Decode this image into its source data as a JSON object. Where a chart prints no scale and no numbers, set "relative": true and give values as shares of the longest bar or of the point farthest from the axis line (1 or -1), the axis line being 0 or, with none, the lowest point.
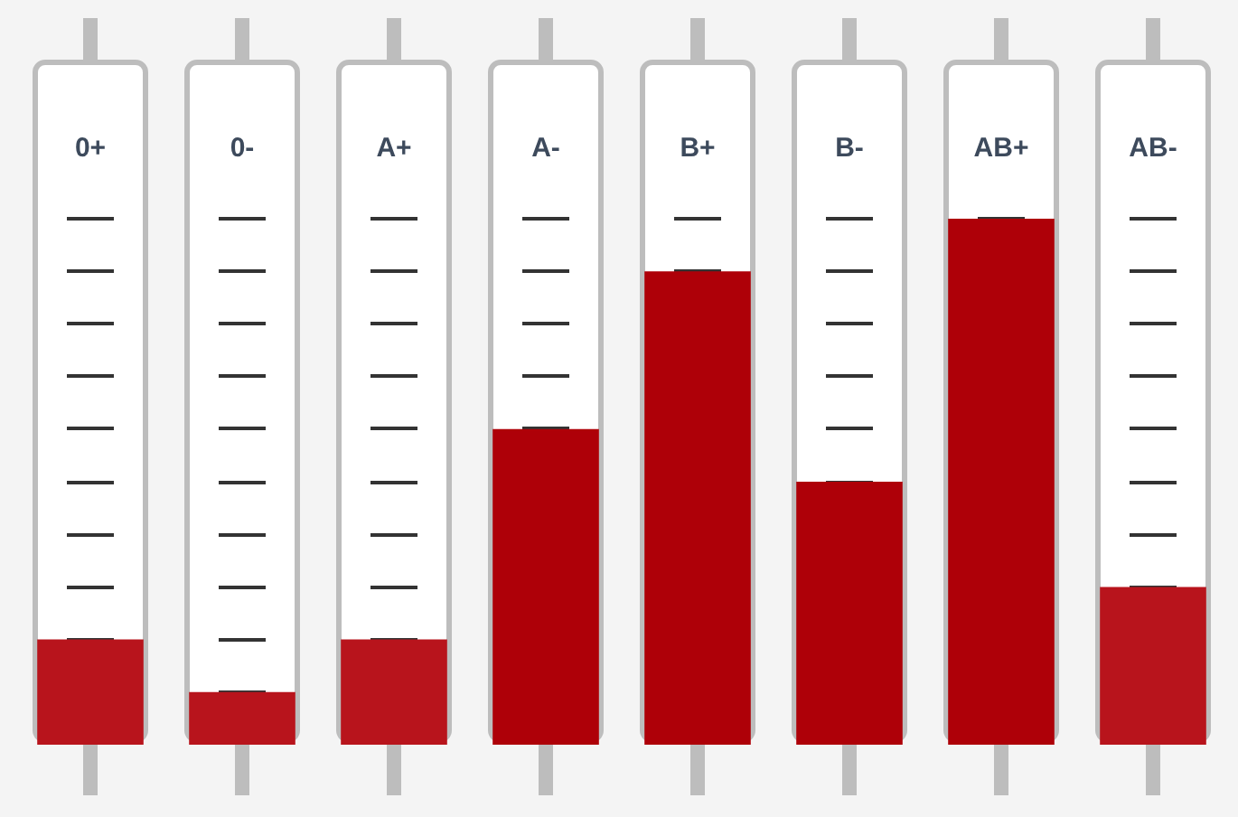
{
  "chart_data": {
    "type": "bar",
    "relative": true,
    "categories": [
      "0+",
      "0-",
      "A+",
      "A-",
      "B+",
      "B-",
      "AB+",
      "AB-"
    ],
    "values": [
      0.2,
      0.1,
      0.2,
      0.6,
      0.9,
      0.5,
      1,
      0.3
    ],
    "colors": [
      "#b8141c",
      "#b8141c",
      "#b8141c",
      "#ae0008",
      "#ae0008",
      "#ae0008",
      "#ae0008",
      "#b8141c"
    ]
  }
}
